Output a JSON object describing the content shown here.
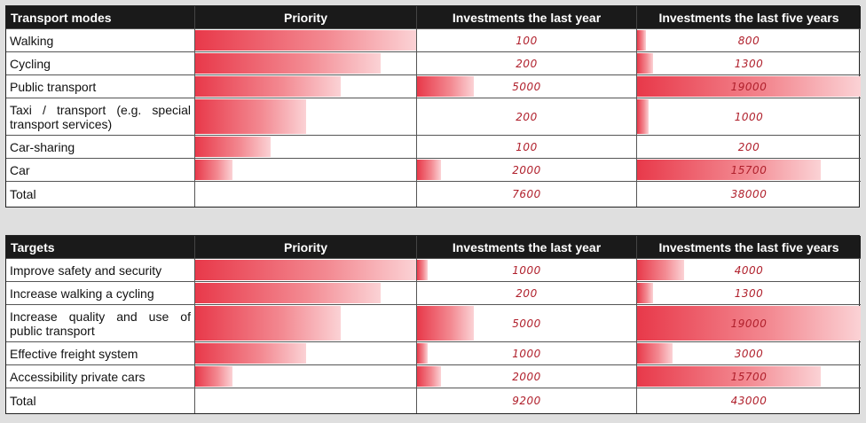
{
  "table1": {
    "headers": [
      "Transport modes",
      "Priority",
      "Investments the last year",
      "Investments the last five years"
    ],
    "rows": [
      {
        "label": "Walking",
        "priority": 1.0,
        "last_year": "100",
        "last_year_share": 0.0,
        "five_years": "800",
        "five_years_share": 0.04
      },
      {
        "label": "Cycling",
        "priority": 0.84,
        "last_year": "200",
        "last_year_share": 0.0,
        "five_years": "1300",
        "five_years_share": 0.07
      },
      {
        "label": "Public transport",
        "priority": 0.66,
        "last_year": "5000",
        "last_year_share": 0.26,
        "five_years": "19000",
        "five_years_share": 1.0
      },
      {
        "label": "Taxi / transport (e.g. special transport services)",
        "priority": 0.5,
        "last_year": "200",
        "last_year_share": 0.0,
        "five_years": "1000",
        "five_years_share": 0.05
      },
      {
        "label": "Car-sharing",
        "priority": 0.34,
        "last_year": "100",
        "last_year_share": 0.0,
        "five_years": "200",
        "five_years_share": 0.0
      },
      {
        "label": "Car",
        "priority": 0.17,
        "last_year": "2000",
        "last_year_share": 0.11,
        "five_years": "15700",
        "five_years_share": 0.82
      }
    ],
    "total": {
      "label": "Total",
      "last_year": "7600",
      "five_years": "38000"
    }
  },
  "table2": {
    "headers": [
      "Targets",
      "Priority",
      "Investments the last year",
      "Investments the last five years"
    ],
    "rows": [
      {
        "label": "Improve safety and security",
        "priority": 1.0,
        "last_year": "1000",
        "last_year_share": 0.05,
        "five_years": "4000",
        "five_years_share": 0.21
      },
      {
        "label": "Increase walking a cycling",
        "priority": 0.84,
        "last_year": "200",
        "last_year_share": 0.0,
        "five_years": "1300",
        "five_years_share": 0.07
      },
      {
        "label": "Increase quality and use of public transport",
        "priority": 0.66,
        "last_year": "5000",
        "last_year_share": 0.26,
        "five_years": "19000",
        "five_years_share": 1.0
      },
      {
        "label": "Effective freight system",
        "priority": 0.5,
        "last_year": "1000",
        "last_year_share": 0.05,
        "five_years": "3000",
        "five_years_share": 0.16
      },
      {
        "label": "Accessibility private cars",
        "priority": 0.17,
        "last_year": "2000",
        "last_year_share": 0.11,
        "five_years": "15700",
        "five_years_share": 0.82
      }
    ],
    "total": {
      "label": "Total",
      "last_year": "9200",
      "five_years": "43000"
    }
  },
  "colors": {
    "header_bg": "#1a1a1a",
    "bar": "#e8394a",
    "number": "#b0202c"
  }
}
